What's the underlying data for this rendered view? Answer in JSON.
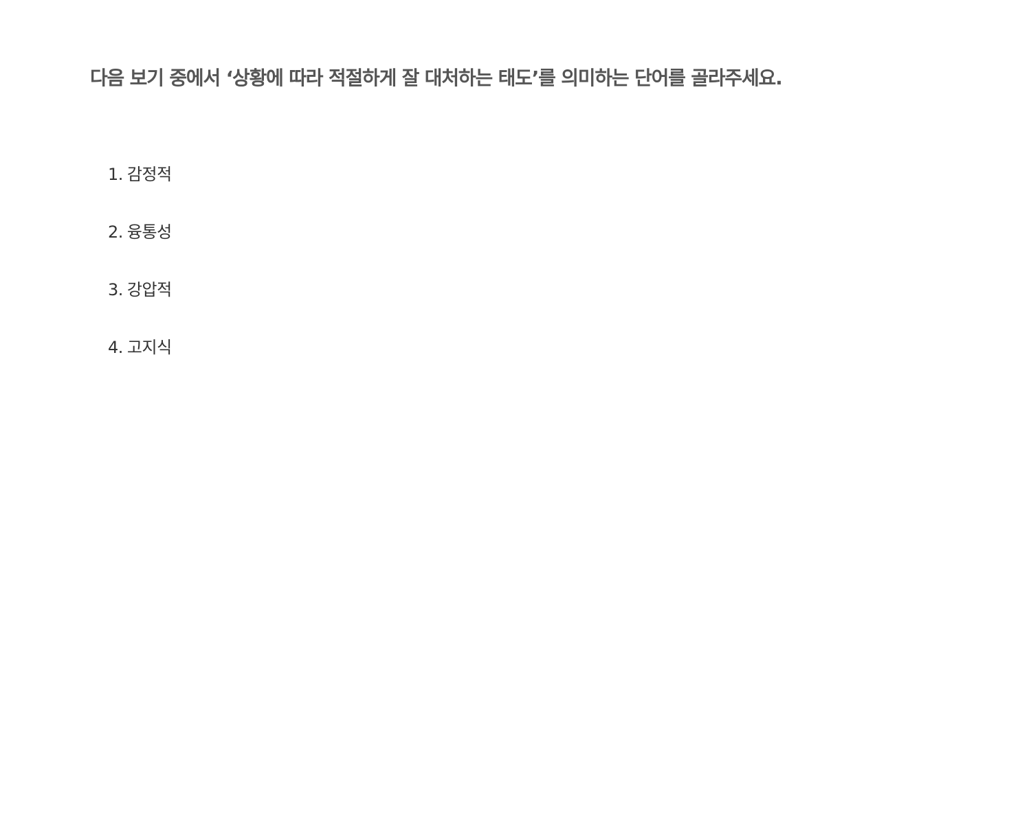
{
  "question": "다음 보기 중에서 ‘상황에 따라 적절하게 잘 대처하는 태도’를 의미하는 단어를 골라주세요.",
  "options": [
    {
      "number": "1.",
      "text": "감정적"
    },
    {
      "number": "2.",
      "text": "융통성"
    },
    {
      "number": "3.",
      "text": "강압적"
    },
    {
      "number": "4.",
      "text": "고지식"
    }
  ]
}
